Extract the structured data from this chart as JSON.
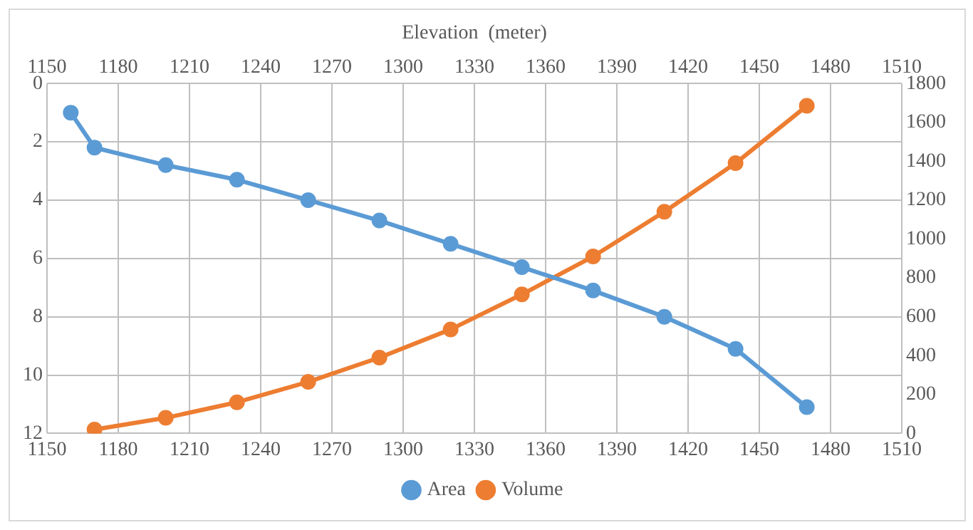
{
  "chart_data": {
    "type": "line",
    "x2label": "Elevation  (meter)",
    "xlim": [
      1150,
      1510
    ],
    "xticks": [
      1150,
      1180,
      1210,
      1240,
      1270,
      1300,
      1330,
      1360,
      1390,
      1420,
      1450,
      1480,
      1510
    ],
    "x2lim": [
      1150,
      1510
    ],
    "x2ticks": [
      1150,
      1180,
      1210,
      1240,
      1270,
      1300,
      1330,
      1360,
      1390,
      1420,
      1450,
      1480,
      1510
    ],
    "ylim": [
      12,
      0
    ],
    "yticks": [
      0,
      2,
      4,
      6,
      8,
      10,
      12
    ],
    "y2lim": [
      0,
      1800
    ],
    "y2ticks": [
      0,
      200,
      400,
      600,
      800,
      1000,
      1200,
      1400,
      1600,
      1800
    ],
    "grid": true,
    "legend": "bottom",
    "marker": "circle",
    "line_style": "solid",
    "series": [
      {
        "name": "Area",
        "color": "#5b9bd5",
        "x": [
          1160,
          1170,
          1200,
          1230,
          1260,
          1290,
          1320,
          1350,
          1380,
          1410,
          1440,
          1470
        ],
        "values": [
          1.0,
          2.2,
          2.8,
          3.3,
          4.0,
          4.7,
          5.5,
          6.3,
          7.1,
          8.0,
          9.1,
          11.1
        ]
      },
      {
        "name": "Volume",
        "color": "#ed7d31",
        "axis": "y2",
        "x": [
          1170,
          1200,
          1230,
          1260,
          1290,
          1320,
          1350,
          1380,
          1410,
          1440,
          1470
        ],
        "values": [
          20,
          80,
          160,
          265,
          390,
          535,
          715,
          910,
          1140,
          1390,
          1685
        ]
      }
    ]
  }
}
